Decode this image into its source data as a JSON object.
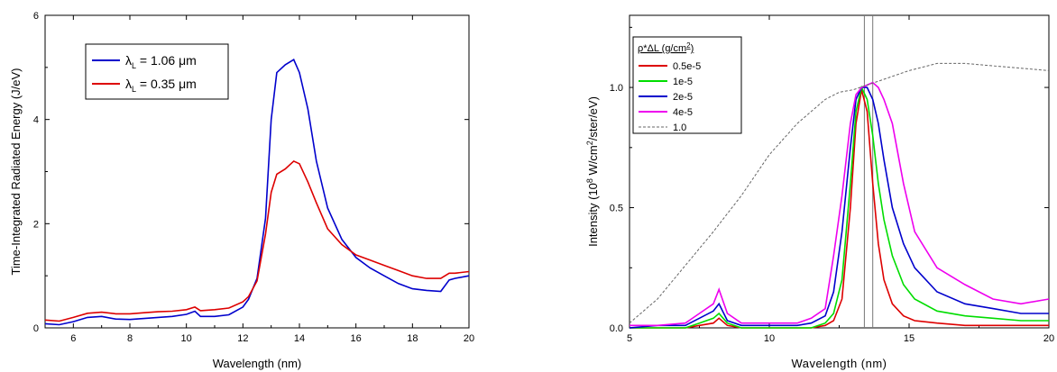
{
  "chart_data": [
    {
      "type": "line",
      "xlabel": "Wavelength (nm)",
      "ylabel": "Time-Integrated Radiated Energy (J/eV)",
      "xlim": [
        5,
        20
      ],
      "ylim": [
        0,
        6
      ],
      "xticks": [
        6,
        8,
        10,
        12,
        14,
        16,
        18,
        20
      ],
      "xtick_labels": [
        "6",
        "8",
        "10",
        "12",
        "14",
        "16",
        "18",
        "20"
      ],
      "yticks": [
        0,
        2,
        4,
        6
      ],
      "ytick_labels": [
        "0",
        "2",
        "4",
        "6"
      ],
      "legend_position": "top-left",
      "grid": false,
      "series": [
        {
          "name": "λ_L = 1.06 μm",
          "legend_label": "λ",
          "legend_sub": "L",
          "legend_value": " = 1.06 μm",
          "color": "#0000cc",
          "x": [
            5,
            5.5,
            6,
            6.5,
            7,
            7.5,
            8,
            8.5,
            9,
            9.5,
            10,
            10.3,
            10.5,
            11,
            11.5,
            12,
            12.2,
            12.5,
            12.8,
            13,
            13.2,
            13.5,
            13.8,
            14,
            14.3,
            14.6,
            15,
            15.5,
            16,
            16.5,
            17,
            17.5,
            18,
            18.5,
            19,
            19.3,
            19.5,
            20
          ],
          "y": [
            0.08,
            0.06,
            0.12,
            0.2,
            0.22,
            0.17,
            0.16,
            0.18,
            0.2,
            0.22,
            0.26,
            0.32,
            0.22,
            0.22,
            0.25,
            0.4,
            0.55,
            0.95,
            2.1,
            4.0,
            4.9,
            5.05,
            5.15,
            4.9,
            4.2,
            3.2,
            2.3,
            1.7,
            1.35,
            1.15,
            1.0,
            0.85,
            0.75,
            0.72,
            0.7,
            0.92,
            0.95,
            1.0
          ]
        },
        {
          "name": "λ_L = 0.35 μm",
          "legend_label": "λ",
          "legend_sub": "L",
          "legend_value": " = 0.35 μm",
          "color": "#dd0000",
          "x": [
            5,
            5.5,
            6,
            6.5,
            7,
            7.5,
            8,
            8.5,
            9,
            9.5,
            10,
            10.3,
            10.5,
            11,
            11.5,
            12,
            12.2,
            12.5,
            12.8,
            13,
            13.2,
            13.5,
            13.8,
            14,
            14.3,
            14.6,
            15,
            15.5,
            16,
            16.5,
            17,
            17.5,
            18,
            18.5,
            19,
            19.3,
            19.5,
            20
          ],
          "y": [
            0.15,
            0.13,
            0.2,
            0.28,
            0.3,
            0.27,
            0.27,
            0.29,
            0.31,
            0.32,
            0.35,
            0.4,
            0.33,
            0.35,
            0.38,
            0.5,
            0.6,
            0.9,
            1.8,
            2.6,
            2.95,
            3.05,
            3.2,
            3.15,
            2.8,
            2.4,
            1.9,
            1.6,
            1.4,
            1.3,
            1.2,
            1.1,
            1.0,
            0.95,
            0.95,
            1.05,
            1.05,
            1.08
          ]
        }
      ]
    },
    {
      "type": "line",
      "xlabel": "Wavelength (nm)",
      "ylabel_prefix": "Intensity (10",
      "ylabel_sup1": "8",
      "ylabel_mid": " W/cm",
      "ylabel_sup2": "2",
      "ylabel_suffix": "/ster/eV)",
      "xlim": [
        5,
        20
      ],
      "ylim": [
        0,
        1.3
      ],
      "xticks": [
        5,
        10,
        15,
        20
      ],
      "xtick_labels": [
        "5",
        "10",
        "15",
        "20"
      ],
      "yticks": [
        0.0,
        0.5,
        1.0
      ],
      "ytick_labels": [
        "0.0",
        "0.5",
        "1.0"
      ],
      "legend_position": "top-left",
      "legend_title_prefix": "ρ*ΔL (g/cm",
      "legend_title_sup": "2",
      "legend_title_suffix": ")",
      "vlines": [
        13.4,
        13.7
      ],
      "grid": false,
      "series": [
        {
          "name": "0.5e-5",
          "color": "#dd0000",
          "dash": "",
          "x": [
            5,
            6,
            7,
            7.5,
            8,
            8.2,
            8.5,
            9,
            10,
            11,
            11.5,
            12,
            12.3,
            12.6,
            12.9,
            13.1,
            13.3,
            13.5,
            13.7,
            13.9,
            14.1,
            14.4,
            14.8,
            15.2,
            16,
            17,
            18,
            19,
            20
          ],
          "y": [
            0.0,
            0.0,
            0.0,
            0.01,
            0.02,
            0.04,
            0.01,
            0.0,
            0.0,
            0.0,
            0.0,
            0.01,
            0.03,
            0.12,
            0.5,
            0.85,
            0.99,
            0.9,
            0.6,
            0.35,
            0.2,
            0.1,
            0.05,
            0.03,
            0.02,
            0.01,
            0.01,
            0.01,
            0.01
          ]
        },
        {
          "name": "1e-5",
          "color": "#00dd00",
          "dash": "",
          "x": [
            5,
            6,
            7,
            7.5,
            8,
            8.2,
            8.5,
            9,
            10,
            11,
            11.5,
            12,
            12.3,
            12.6,
            12.9,
            13.1,
            13.3,
            13.5,
            13.7,
            13.9,
            14.1,
            14.4,
            14.8,
            15.2,
            16,
            17,
            18,
            19,
            20
          ],
          "y": [
            0.0,
            0.0,
            0.0,
            0.02,
            0.04,
            0.06,
            0.02,
            0.0,
            0.0,
            0.0,
            0.0,
            0.02,
            0.06,
            0.2,
            0.6,
            0.9,
            1.0,
            0.95,
            0.8,
            0.6,
            0.45,
            0.3,
            0.18,
            0.12,
            0.07,
            0.05,
            0.04,
            0.03,
            0.03
          ]
        },
        {
          "name": "2e-5",
          "color": "#0000cc",
          "dash": "",
          "x": [
            5,
            6,
            7,
            7.5,
            8,
            8.2,
            8.5,
            9,
            10,
            11,
            11.5,
            12,
            12.3,
            12.6,
            12.9,
            13.1,
            13.3,
            13.5,
            13.7,
            13.9,
            14.1,
            14.4,
            14.8,
            15.2,
            16,
            17,
            18,
            19,
            20
          ],
          "y": [
            0.0,
            0.01,
            0.01,
            0.04,
            0.07,
            0.1,
            0.03,
            0.01,
            0.01,
            0.01,
            0.02,
            0.05,
            0.15,
            0.4,
            0.75,
            0.95,
            1.0,
            1.0,
            0.95,
            0.85,
            0.7,
            0.5,
            0.35,
            0.25,
            0.15,
            0.1,
            0.08,
            0.06,
            0.06
          ]
        },
        {
          "name": "4e-5",
          "color": "#ee00ee",
          "dash": "",
          "x": [
            5,
            6,
            7,
            7.5,
            8,
            8.2,
            8.5,
            9,
            10,
            11,
            11.5,
            12,
            12.3,
            12.6,
            12.9,
            13.1,
            13.3,
            13.5,
            13.7,
            13.9,
            14.1,
            14.4,
            14.8,
            15.2,
            16,
            17,
            18,
            19,
            20
          ],
          "y": [
            0.01,
            0.01,
            0.02,
            0.06,
            0.1,
            0.16,
            0.06,
            0.02,
            0.02,
            0.02,
            0.04,
            0.08,
            0.3,
            0.55,
            0.85,
            0.97,
            1.0,
            1.01,
            1.02,
            1.0,
            0.95,
            0.85,
            0.6,
            0.4,
            0.25,
            0.18,
            0.12,
            0.1,
            0.12
          ]
        },
        {
          "name": "1.0",
          "color": "#666666",
          "dash": "3,2",
          "x": [
            5,
            6,
            7,
            8,
            9,
            10,
            11,
            12,
            12.5,
            13,
            13.5,
            14,
            14.5,
            15,
            16,
            17,
            18,
            19,
            20
          ],
          "y": [
            0.02,
            0.12,
            0.26,
            0.4,
            0.55,
            0.72,
            0.85,
            0.95,
            0.98,
            0.99,
            1.01,
            1.03,
            1.05,
            1.07,
            1.1,
            1.1,
            1.09,
            1.08,
            1.07
          ]
        }
      ]
    }
  ]
}
